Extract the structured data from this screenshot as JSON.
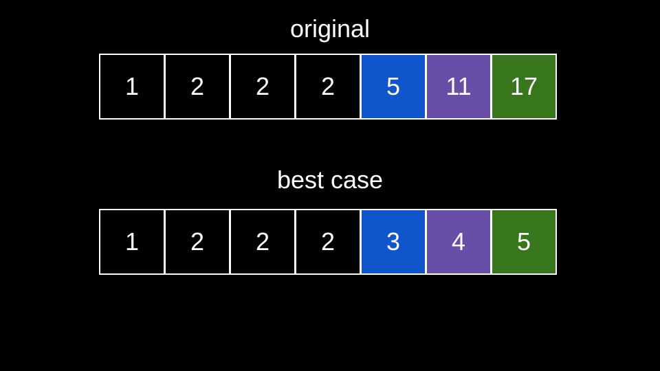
{
  "rows": [
    {
      "title": "original",
      "cells": [
        {
          "value": "1",
          "color": "#000000"
        },
        {
          "value": "2",
          "color": "#000000"
        },
        {
          "value": "2",
          "color": "#000000"
        },
        {
          "value": "2",
          "color": "#000000"
        },
        {
          "value": "5",
          "color": "#1155cc"
        },
        {
          "value": "11",
          "color": "#674ea7"
        },
        {
          "value": "17",
          "color": "#38761d"
        }
      ]
    },
    {
      "title": "best case",
      "cells": [
        {
          "value": "1",
          "color": "#000000"
        },
        {
          "value": "2",
          "color": "#000000"
        },
        {
          "value": "2",
          "color": "#000000"
        },
        {
          "value": "2",
          "color": "#000000"
        },
        {
          "value": "3",
          "color": "#1155cc"
        },
        {
          "value": "4",
          "color": "#674ea7"
        },
        {
          "value": "5",
          "color": "#38761d"
        }
      ]
    }
  ]
}
